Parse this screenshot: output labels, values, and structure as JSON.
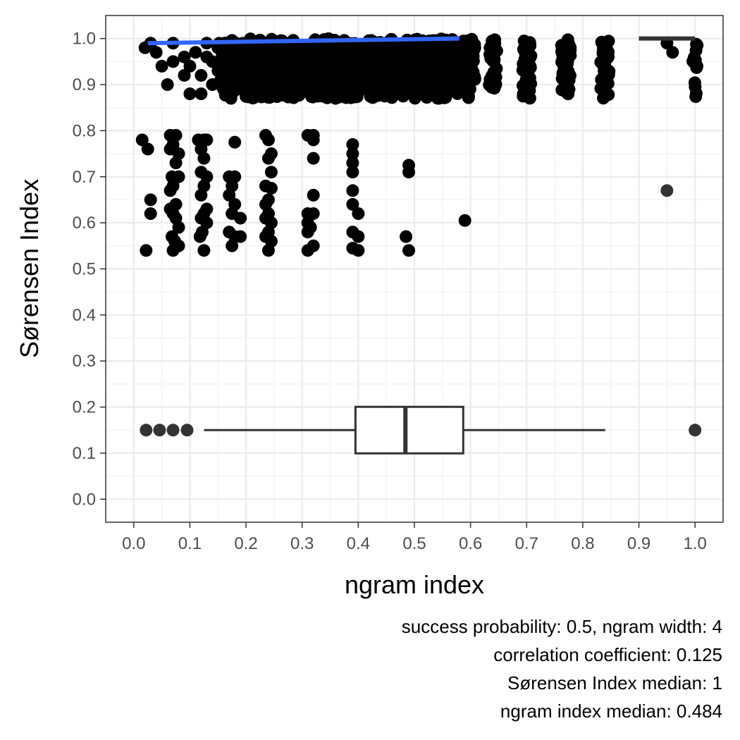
{
  "chart_data": {
    "type": "scatter",
    "xlabel": "ngram index",
    "ylabel": "Sørensen Index",
    "xlim": [
      -0.05,
      1.05
    ],
    "ylim": [
      -0.05,
      1.05
    ],
    "x_ticks": [
      "0.0",
      "0.1",
      "0.2",
      "0.3",
      "0.4",
      "0.5",
      "0.6",
      "0.7",
      "0.8",
      "0.9",
      "1.0"
    ],
    "y_ticks": [
      "0.0",
      "0.1",
      "0.2",
      "0.3",
      "0.4",
      "0.5",
      "0.6",
      "0.7",
      "0.8",
      "0.9",
      "1.0"
    ],
    "grid": true,
    "dense_band": {
      "y_range": [
        0.87,
        1.0
      ],
      "x_columns": [
        0.16,
        0.18,
        0.2,
        0.22,
        0.24,
        0.26,
        0.28,
        0.3,
        0.32,
        0.34,
        0.36,
        0.38,
        0.4,
        0.42,
        0.44,
        0.46,
        0.48,
        0.5,
        0.52,
        0.54,
        0.56,
        0.58,
        0.6,
        0.64,
        0.7,
        0.77,
        0.84,
        1.0
      ]
    },
    "band_points": [
      [
        0.02,
        0.98
      ],
      [
        0.03,
        0.99
      ],
      [
        0.04,
        0.97
      ],
      [
        0.05,
        0.94
      ],
      [
        0.06,
        0.9
      ],
      [
        0.07,
        0.99
      ],
      [
        0.07,
        0.95
      ],
      [
        0.09,
        0.96
      ],
      [
        0.09,
        0.92
      ],
      [
        0.1,
        0.88
      ],
      [
        0.1,
        0.94
      ],
      [
        0.11,
        0.97
      ],
      [
        0.12,
        0.92
      ],
      [
        0.12,
        0.88
      ],
      [
        0.13,
        0.96
      ],
      [
        0.13,
        0.99
      ],
      [
        0.14,
        0.9
      ],
      [
        0.14,
        0.95
      ],
      [
        0.15,
        0.93
      ],
      [
        0.15,
        0.98
      ],
      [
        0.16,
        0.89
      ],
      [
        0.17,
        0.96
      ],
      [
        0.18,
        0.91
      ],
      [
        0.19,
        0.98
      ],
      [
        0.95,
        0.99
      ],
      [
        0.96,
        0.97
      ]
    ],
    "scattered_points": [
      [
        0.015,
        0.78
      ],
      [
        0.025,
        0.76
      ],
      [
        0.03,
        0.65
      ],
      [
        0.03,
        0.62
      ],
      [
        0.022,
        0.54
      ],
      [
        0.065,
        0.79
      ],
      [
        0.075,
        0.79
      ],
      [
        0.07,
        0.77
      ],
      [
        0.065,
        0.76
      ],
      [
        0.08,
        0.75
      ],
      [
        0.075,
        0.73
      ],
      [
        0.068,
        0.7
      ],
      [
        0.08,
        0.7
      ],
      [
        0.07,
        0.68
      ],
      [
        0.065,
        0.67
      ],
      [
        0.075,
        0.64
      ],
      [
        0.065,
        0.63
      ],
      [
        0.07,
        0.62
      ],
      [
        0.075,
        0.61
      ],
      [
        0.08,
        0.59
      ],
      [
        0.068,
        0.57
      ],
      [
        0.073,
        0.56
      ],
      [
        0.08,
        0.55
      ],
      [
        0.07,
        0.54
      ],
      [
        0.115,
        0.78
      ],
      [
        0.125,
        0.78
      ],
      [
        0.13,
        0.78
      ],
      [
        0.12,
        0.76
      ],
      [
        0.125,
        0.74
      ],
      [
        0.12,
        0.71
      ],
      [
        0.13,
        0.7
      ],
      [
        0.125,
        0.68
      ],
      [
        0.12,
        0.66
      ],
      [
        0.13,
        0.63
      ],
      [
        0.125,
        0.62
      ],
      [
        0.12,
        0.61
      ],
      [
        0.13,
        0.6
      ],
      [
        0.122,
        0.58
      ],
      [
        0.118,
        0.57
      ],
      [
        0.125,
        0.54
      ],
      [
        0.18,
        0.775
      ],
      [
        0.17,
        0.7
      ],
      [
        0.18,
        0.7
      ],
      [
        0.175,
        0.68
      ],
      [
        0.17,
        0.66
      ],
      [
        0.18,
        0.64
      ],
      [
        0.175,
        0.62
      ],
      [
        0.19,
        0.61
      ],
      [
        0.17,
        0.58
      ],
      [
        0.18,
        0.57
      ],
      [
        0.19,
        0.57
      ],
      [
        0.175,
        0.55
      ],
      [
        0.235,
        0.79
      ],
      [
        0.24,
        0.78
      ],
      [
        0.245,
        0.75
      ],
      [
        0.24,
        0.74
      ],
      [
        0.245,
        0.71
      ],
      [
        0.235,
        0.68
      ],
      [
        0.245,
        0.675
      ],
      [
        0.24,
        0.65
      ],
      [
        0.235,
        0.64
      ],
      [
        0.24,
        0.62
      ],
      [
        0.235,
        0.61
      ],
      [
        0.245,
        0.6
      ],
      [
        0.24,
        0.58
      ],
      [
        0.235,
        0.57
      ],
      [
        0.245,
        0.56
      ],
      [
        0.24,
        0.54
      ],
      [
        0.31,
        0.79
      ],
      [
        0.32,
        0.79
      ],
      [
        0.32,
        0.78
      ],
      [
        0.32,
        0.74
      ],
      [
        0.32,
        0.66
      ],
      [
        0.31,
        0.62
      ],
      [
        0.32,
        0.62
      ],
      [
        0.31,
        0.6
      ],
      [
        0.315,
        0.59
      ],
      [
        0.31,
        0.58
      ],
      [
        0.31,
        0.54
      ],
      [
        0.32,
        0.55
      ],
      [
        0.39,
        0.77
      ],
      [
        0.39,
        0.75
      ],
      [
        0.39,
        0.73
      ],
      [
        0.39,
        0.71
      ],
      [
        0.39,
        0.67
      ],
      [
        0.39,
        0.64
      ],
      [
        0.4,
        0.62
      ],
      [
        0.39,
        0.58
      ],
      [
        0.4,
        0.57
      ],
      [
        0.39,
        0.545
      ],
      [
        0.4,
        0.54
      ],
      [
        0.49,
        0.725
      ],
      [
        0.49,
        0.71
      ],
      [
        0.485,
        0.57
      ],
      [
        0.49,
        0.54
      ],
      [
        0.59,
        0.605
      ],
      [
        0.95,
        0.67
      ]
    ],
    "trend_line": {
      "x": [
        0.025,
        0.58
      ],
      "y": [
        0.99,
        1.0
      ],
      "color": "#3366ff"
    },
    "boxplot": {
      "y": 0.15,
      "q1": 0.395,
      "median": 0.484,
      "q3": 0.587,
      "whisker_low": 0.125,
      "whisker_high": 0.84,
      "outliers": [
        0.022,
        0.046,
        0.07,
        0.095,
        1.0
      ]
    },
    "second_boxplot": {
      "y": 1.0,
      "whisker_low": 0.9,
      "whisker_high": 1.0
    },
    "captions": [
      "success probability: 0.5, ngram width: 4",
      "correlation coefficient: 0.125",
      "Sørensen Index median: 1",
      "ngram index median: 0.484"
    ]
  }
}
